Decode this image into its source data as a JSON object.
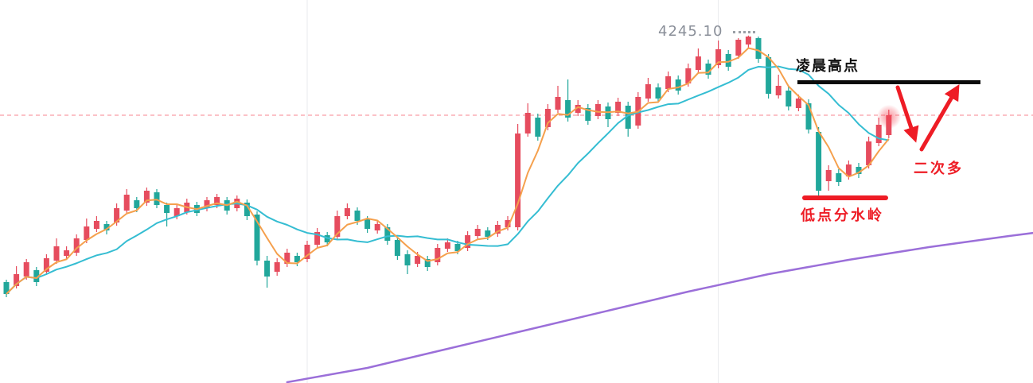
{
  "chart_data": {
    "type": "candlestick",
    "title": "",
    "xlabel": "",
    "ylabel": "",
    "axis_labels_visible": false,
    "ylim_estimate": [
      4078,
      4252
    ],
    "candle_count": 89,
    "colors": {
      "up": "#e64c5e",
      "down": "#21a79b",
      "ma_fast": "#f5a04d",
      "ma_mid": "#35bdd2",
      "ma_long": "#9b6fd9",
      "price_line": "#f23645",
      "annotation_red": "#ee1c25",
      "annotation_black": "#111111",
      "price_flag_gray": "#8a8f99"
    },
    "ma_windows": {
      "fast": 4,
      "mid": 12
    },
    "grid": {
      "vertical_line_indexes": [
        30,
        71
      ],
      "color": "rgba(120,130,145,0.16)"
    },
    "price_line": {
      "price": 4195.0,
      "color": "#f23645"
    },
    "long_ma_points": [
      [
        28,
        4027
      ],
      [
        36,
        4036
      ],
      [
        44,
        4048
      ],
      [
        52,
        4060
      ],
      [
        60,
        4072
      ],
      [
        68,
        4084
      ],
      [
        76,
        4095
      ],
      [
        84,
        4104
      ],
      [
        92,
        4112
      ],
      [
        100,
        4119
      ],
      [
        102.5,
        4121
      ]
    ],
    "candles": [
      [
        4090.0,
        4091.5,
        4080.5,
        4082.5
      ],
      [
        4087.5,
        4100.0,
        4086.0,
        4095.0
      ],
      [
        4093.5,
        4104.5,
        4091.5,
        4102.5
      ],
      [
        4097.5,
        4099.5,
        4087.5,
        4090.0
      ],
      [
        4096.5,
        4107.5,
        4094.5,
        4105.0
      ],
      [
        4103.5,
        4117.5,
        4101.5,
        4112.5
      ],
      [
        4106.5,
        4112.5,
        4104.0,
        4110.0
      ],
      [
        4108.5,
        4120.0,
        4106.5,
        4117.5
      ],
      [
        4116.5,
        4130.0,
        4114.5,
        4125.0
      ],
      [
        4123.5,
        4131.5,
        4121.5,
        4128.5
      ],
      [
        4126.5,
        4128.5,
        4120.0,
        4122.5
      ],
      [
        4127.5,
        4139.5,
        4125.5,
        4136.5
      ],
      [
        4135.0,
        4148.5,
        4133.0,
        4145.0
      ],
      [
        4141.5,
        4143.5,
        4134.0,
        4136.5
      ],
      [
        4140.0,
        4149.5,
        4138.0,
        4147.5
      ],
      [
        4146.5,
        4148.5,
        4136.5,
        4138.5
      ],
      [
        4138.5,
        4140.0,
        4125.0,
        4133.5
      ],
      [
        4131.5,
        4138.5,
        4129.5,
        4136.5
      ],
      [
        4134.0,
        4142.5,
        4132.5,
        4140.0
      ],
      [
        4138.5,
        4140.5,
        4131.5,
        4133.5
      ],
      [
        4136.5,
        4143.5,
        4134.5,
        4141.5
      ],
      [
        4138.5,
        4145.5,
        4136.5,
        4143.5
      ],
      [
        4141.5,
        4143.5,
        4132.5,
        4135.0
      ],
      [
        4136.5,
        4144.5,
        4134.5,
        4142.5
      ],
      [
        4140.0,
        4142.0,
        4129.0,
        4131.5
      ],
      [
        4132.5,
        4134.5,
        4100.5,
        4103.5
      ],
      [
        4103.5,
        4106.5,
        4086.5,
        4093.5
      ],
      [
        4096.5,
        4105.0,
        4094.0,
        4102.5
      ],
      [
        4101.5,
        4111.0,
        4099.5,
        4108.5
      ],
      [
        4106.5,
        4108.5,
        4100.0,
        4102.5
      ],
      [
        4104.5,
        4116.0,
        4102.5,
        4113.5
      ],
      [
        4113.5,
        4124.0,
        4111.5,
        4121.5
      ],
      [
        4119.5,
        4121.5,
        4112.5,
        4115.0
      ],
      [
        4118.5,
        4135.0,
        4116.5,
        4131.5
      ],
      [
        4131.5,
        4139.5,
        4129.5,
        4136.5
      ],
      [
        4135.0,
        4137.0,
        4126.0,
        4128.5
      ],
      [
        4129.5,
        4131.5,
        4121.0,
        4123.5
      ],
      [
        4122.5,
        4129.0,
        4120.5,
        4126.5
      ],
      [
        4124.5,
        4126.5,
        4113.5,
        4116.0
      ],
      [
        4116.5,
        4118.5,
        4104.0,
        4106.5
      ],
      [
        4107.5,
        4110.0,
        4095.0,
        4100.5
      ],
      [
        4101.5,
        4109.0,
        4099.5,
        4106.5
      ],
      [
        4104.5,
        4106.5,
        4097.0,
        4099.5
      ],
      [
        4102.5,
        4114.0,
        4100.5,
        4111.5
      ],
      [
        4111.0,
        4117.5,
        4109.0,
        4115.0
      ],
      [
        4114.0,
        4116.0,
        4107.5,
        4109.5
      ],
      [
        4111.5,
        4122.0,
        4109.5,
        4119.5
      ],
      [
        4119.0,
        4126.0,
        4117.0,
        4123.5
      ],
      [
        4122.5,
        4124.5,
        4116.5,
        4118.5
      ],
      [
        4120.5,
        4128.5,
        4118.5,
        4126.0
      ],
      [
        4124.5,
        4131.5,
        4122.5,
        4129.0
      ],
      [
        4124.5,
        4189.5,
        4122.5,
        4183.5
      ],
      [
        4183.5,
        4202.5,
        4181.5,
        4196.5
      ],
      [
        4193.5,
        4196.0,
        4179.0,
        4181.5
      ],
      [
        4187.5,
        4202.0,
        4185.5,
        4199.0
      ],
      [
        4198.5,
        4213.5,
        4196.5,
        4206.5
      ],
      [
        4204.5,
        4217.5,
        4191.0,
        4193.5
      ],
      [
        4196.5,
        4204.5,
        4194.5,
        4201.5
      ],
      [
        4199.5,
        4202.0,
        4189.0,
        4191.5
      ],
      [
        4194.5,
        4204.5,
        4192.5,
        4202.0
      ],
      [
        4200.5,
        4203.0,
        4187.5,
        4192.5
      ],
      [
        4196.5,
        4206.0,
        4194.5,
        4203.5
      ],
      [
        4201.0,
        4203.5,
        4181.5,
        4186.5
      ],
      [
        4188.5,
        4209.5,
        4186.5,
        4206.5
      ],
      [
        4205.5,
        4218.5,
        4203.5,
        4214.5
      ],
      [
        4212.5,
        4215.0,
        4203.0,
        4205.5
      ],
      [
        4211.5,
        4222.5,
        4209.5,
        4219.5
      ],
      [
        4217.5,
        4220.0,
        4208.0,
        4210.5
      ],
      [
        4215.0,
        4227.5,
        4213.0,
        4224.5
      ],
      [
        4223.5,
        4237.0,
        4221.5,
        4232.0
      ],
      [
        4227.5,
        4230.0,
        4218.0,
        4220.5
      ],
      [
        4226.5,
        4242.0,
        4224.5,
        4236.5
      ],
      [
        4233.5,
        4236.0,
        4223.0,
        4225.5
      ],
      [
        4232.5,
        4243.5,
        4230.5,
        4242.5
      ],
      [
        4239.5,
        4245.1,
        4237.5,
        4244.5
      ],
      [
        4243.5,
        4244.5,
        4228.0,
        4230.5
      ],
      [
        4231.5,
        4233.5,
        4205.5,
        4208.5
      ],
      [
        4207.5,
        4220.5,
        4205.5,
        4213.5
      ],
      [
        4210.5,
        4213.0,
        4198.0,
        4200.5
      ],
      [
        4199.5,
        4208.0,
        4197.5,
        4205.5
      ],
      [
        4202.5,
        4205.0,
        4183.5,
        4186.0
      ],
      [
        4184.5,
        4187.5,
        4141.5,
        4147.5
      ],
      [
        4153.5,
        4163.5,
        4147.5,
        4160.5
      ],
      [
        4158.5,
        4161.0,
        4150.5,
        4153.0
      ],
      [
        4156.5,
        4166.5,
        4154.5,
        4164.0
      ],
      [
        4162.5,
        4165.0,
        4155.5,
        4158.0
      ],
      [
        4163.5,
        4181.5,
        4161.5,
        4178.5
      ],
      [
        4177.5,
        4193.5,
        4175.5,
        4189.0
      ],
      [
        4182.5,
        4198.5,
        4180.5,
        4195.0
      ]
    ],
    "annotations": {
      "high_flag": {
        "label": "4245.10",
        "price": 4245.1
      },
      "morning_high": {
        "label": "凌晨高点",
        "price": 4215.0,
        "type": "horizontal_segment",
        "color": "#111111"
      },
      "watershed": {
        "label": "低点分水岭",
        "price": 4142.5,
        "type": "horizontal_segment",
        "color": "#ee1c25"
      },
      "second_long": {
        "label": "二次多",
        "color": "#ee1c25"
      },
      "arrow": {
        "shape": "down-then-up-V",
        "color": "#ee1c25"
      }
    }
  }
}
